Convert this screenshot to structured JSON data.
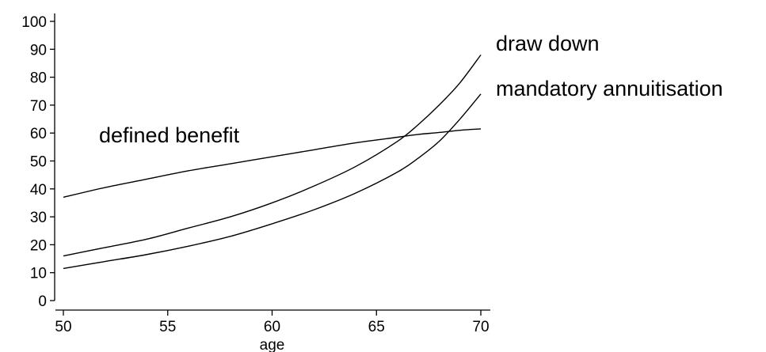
{
  "chart_data": {
    "type": "line",
    "title": "",
    "xlabel": "age",
    "ylabel": "",
    "xlim": [
      50,
      70
    ],
    "ylim": [
      0,
      100
    ],
    "x_ticks": [
      50,
      55,
      60,
      65,
      70
    ],
    "y_ticks": [
      0,
      10,
      20,
      30,
      40,
      50,
      60,
      70,
      80,
      90,
      100
    ],
    "grid": false,
    "legend": "none",
    "x": [
      50,
      52,
      54,
      56,
      58,
      60,
      62,
      64,
      66,
      67,
      68,
      69,
      70
    ],
    "series": [
      {
        "name": "draw down",
        "values": [
          16,
          19,
          22,
          26,
          30,
          35,
          41,
          48,
          57,
          63,
          70,
          78,
          88
        ]
      },
      {
        "name": "mandatory annuitisation",
        "values": [
          11.5,
          14,
          16.5,
          19.5,
          23,
          27.5,
          32.5,
          38.5,
          46,
          51,
          57,
          65,
          74
        ]
      },
      {
        "name": "defined benefit",
        "values": [
          37,
          40.5,
          43.5,
          46.5,
          49,
          51.5,
          54,
          56.5,
          58.5,
          59.5,
          60.2,
          61,
          61.5
        ]
      }
    ],
    "line_color": "#000000"
  }
}
